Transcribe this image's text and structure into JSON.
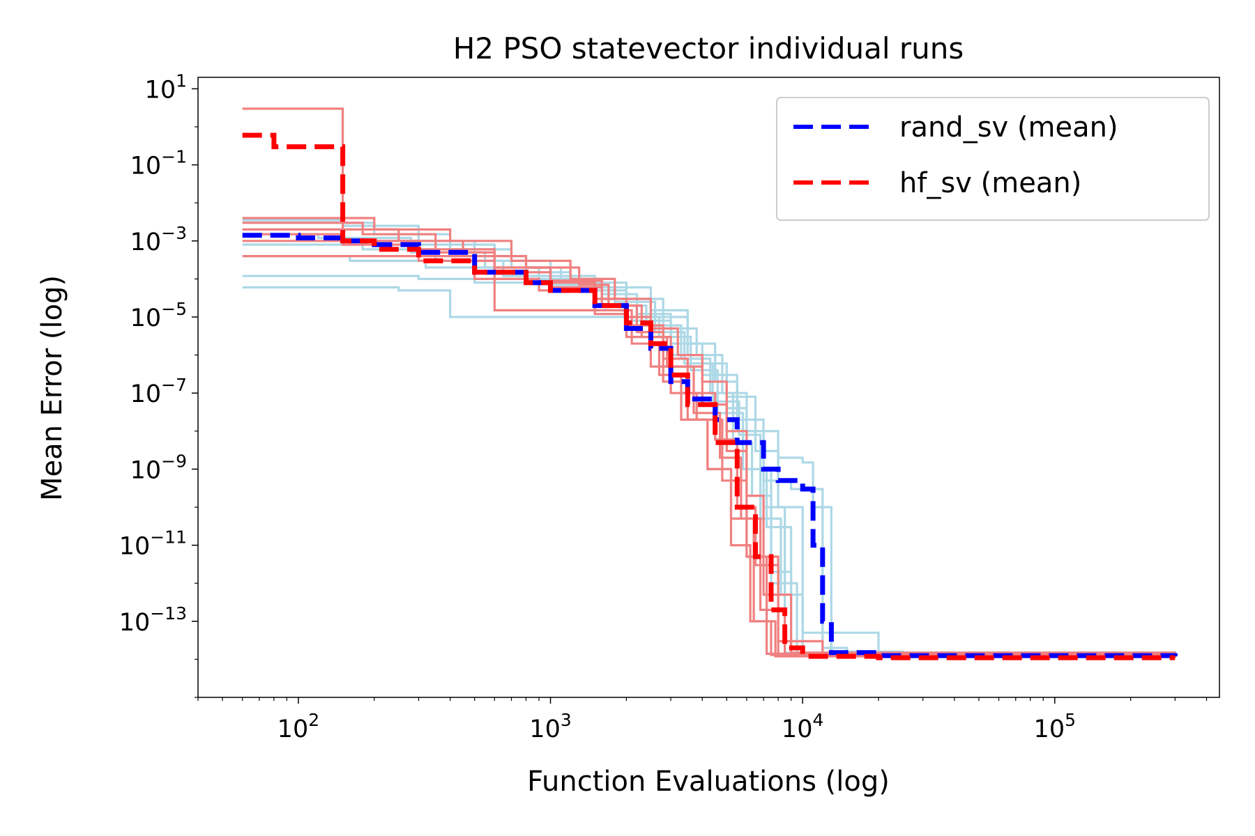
{
  "chart_data": {
    "type": "line",
    "title": "H2 PSO statevector individual runs",
    "xlabel": "Function Evaluations (log)",
    "ylabel": "Mean Error (log)",
    "xscale": "log",
    "yscale": "log",
    "xlim": [
      40,
      450000
    ],
    "ylim": [
      1e-15,
      20
    ],
    "x_ticks": [
      {
        "value": 100,
        "base": "10",
        "exp": "2"
      },
      {
        "value": 1000,
        "base": "10",
        "exp": "3"
      },
      {
        "value": 10000,
        "base": "10",
        "exp": "4"
      },
      {
        "value": 100000,
        "base": "10",
        "exp": "5"
      }
    ],
    "y_ticks": [
      {
        "value": 10,
        "base": "10",
        "exp": "1"
      },
      {
        "value": 0.1,
        "base": "10",
        "exp": "−1"
      },
      {
        "value": 0.001,
        "base": "10",
        "exp": "−3"
      },
      {
        "value": 1e-05,
        "base": "10",
        "exp": "−5"
      },
      {
        "value": 1e-07,
        "base": "10",
        "exp": "−7"
      },
      {
        "value": 1e-09,
        "base": "10",
        "exp": "−9"
      },
      {
        "value": 1e-11,
        "base": "10",
        "exp": "−11"
      },
      {
        "value": 1e-13,
        "base": "10",
        "exp": "−13"
      }
    ],
    "legend": {
      "position": "top-right",
      "entries": [
        {
          "label": "rand_sv (mean)",
          "color": "#0000ff",
          "style": "dashed"
        },
        {
          "label": "hf_sv (mean)",
          "color": "#ff0000",
          "style": "dashed"
        }
      ]
    },
    "series": [
      {
        "name": "rand_sv run 1",
        "group": "rand_sv",
        "color": "#add8e6",
        "x": [
          60,
          150,
          300,
          600,
          1000,
          1500,
          2500,
          3500,
          4500,
          5500,
          7000,
          9000,
          12000,
          15000,
          25000,
          300000
        ],
        "y": [
          0.0035,
          0.0025,
          0.0008,
          0.0003,
          0.00012,
          6e-05,
          1.5e-05,
          2e-06,
          3e-07,
          2e-08,
          5e-10,
          3e-10,
          2e-14,
          1.6e-14,
          1.3e-14,
          1.2e-14
        ]
      },
      {
        "name": "rand_sv run 2",
        "group": "rand_sv",
        "color": "#add8e6",
        "x": [
          60,
          200,
          400,
          700,
          1100,
          1600,
          2200,
          3000,
          4000,
          5000,
          6500,
          8000,
          10000,
          20000,
          300000
        ],
        "y": [
          0.003,
          0.0015,
          0.0006,
          0.0002,
          0.0001,
          4e-05,
          1.2e-05,
          2e-06,
          6e-07,
          8e-08,
          3e-09,
          1e-10,
          5e-14,
          1.5e-14,
          1.2e-14
        ]
      },
      {
        "name": "rand_sv run 3",
        "group": "rand_sv",
        "color": "#add8e6",
        "x": [
          60,
          250,
          500,
          800,
          1200,
          2000,
          2800,
          3800,
          4800,
          6000,
          8000,
          10000,
          11000,
          13000,
          300000
        ],
        "y": [
          0.002,
          0.001,
          0.0004,
          0.00015,
          8e-05,
          3e-05,
          5e-06,
          1e-06,
          1e-07,
          1e-08,
          2e-09,
          1.5e-09,
          1e-10,
          1.5e-14,
          1.2e-14
        ]
      },
      {
        "name": "rand_sv run 4",
        "group": "rand_sv",
        "color": "#add8e6",
        "x": [
          60,
          120,
          280,
          550,
          900,
          1400,
          2000,
          2700,
          3600,
          4600,
          5800,
          7200,
          9000,
          300000
        ],
        "y": [
          0.0015,
          0.0012,
          0.0005,
          0.0002,
          9e-05,
          5e-05,
          1e-05,
          3e-06,
          4e-07,
          3e-08,
          1e-09,
          3e-11,
          1.5e-14,
          1.2e-14
        ]
      },
      {
        "name": "rand_sv run 5",
        "group": "rand_sv",
        "color": "#add8e6",
        "x": [
          60,
          180,
          350,
          650,
          1000,
          1700,
          2400,
          3300,
          4300,
          5300,
          6300,
          7500,
          9500,
          300000
        ],
        "y": [
          0.0008,
          0.0006,
          0.0003,
          0.00012,
          7e-05,
          2e-05,
          6e-06,
          8e-07,
          1e-07,
          5e-09,
          2e-10,
          1e-12,
          1.4e-14,
          1.2e-14
        ]
      },
      {
        "name": "rand_sv run 6",
        "group": "rand_sv",
        "color": "#add8e6",
        "x": [
          60,
          300,
          500,
          1000,
          1500,
          2500,
          3500,
          4500,
          5500,
          7000,
          8500,
          300000
        ],
        "y": [
          0.00012,
          0.0001,
          8e-05,
          6e-05,
          3e-05,
          1e-05,
          1e-06,
          2e-07,
          1e-08,
          1e-10,
          1.5e-14,
          1.2e-14
        ]
      },
      {
        "name": "rand_sv run 7",
        "group": "rand_sv",
        "color": "#add8e6",
        "x": [
          60,
          250,
          400,
          800,
          1500,
          2000,
          3000,
          4000,
          5000,
          6000,
          7500,
          9000,
          300000
        ],
        "y": [
          6e-05,
          5e-05,
          1e-05,
          1e-05,
          1e-05,
          8e-06,
          1e-06,
          3e-07,
          4e-08,
          1e-09,
          2e-12,
          1.4e-14,
          1.2e-14
        ]
      },
      {
        "name": "rand_sv run 8",
        "group": "rand_sv",
        "color": "#add8e6",
        "x": [
          60,
          160,
          320,
          600,
          1200,
          1800,
          2600,
          3400,
          4400,
          5600,
          6800,
          8200,
          10000,
          300000
        ],
        "y": [
          0.0004,
          0.0003,
          0.0002,
          0.0001,
          5e-05,
          2.5e-05,
          4e-06,
          6e-07,
          6e-08,
          8e-09,
          5e-11,
          5e-13,
          1.4e-14,
          1.2e-14
        ]
      },
      {
        "name": "hf_sv run 1",
        "group": "hf_sv",
        "color": "#f08080",
        "x": [
          60,
          120,
          150,
          300,
          600,
          1000,
          1500,
          2000,
          2500,
          3000,
          4000,
          5000,
          6000,
          8000,
          12000,
          300000
        ],
        "y": [
          3,
          3,
          0.001,
          0.0005,
          0.0002,
          8e-05,
          3e-05,
          1e-05,
          3e-06,
          5e-07,
          5e-08,
          3e-09,
          5e-12,
          3e-14,
          1.3e-14,
          1.1e-14
        ]
      },
      {
        "name": "hf_sv run 2",
        "group": "hf_sv",
        "color": "#f08080",
        "x": [
          60,
          200,
          400,
          700,
          1200,
          1800,
          2500,
          3200,
          4000,
          5000,
          6000,
          7000,
          9000,
          300000
        ],
        "y": [
          0.004,
          0.002,
          0.001,
          0.0003,
          0.0001,
          3e-05,
          5e-06,
          1e-06,
          2e-07,
          1e-08,
          2e-10,
          5e-13,
          1.5e-14,
          1.1e-14
        ]
      },
      {
        "name": "hf_sv run 3",
        "group": "hf_sv",
        "color": "#f08080",
        "x": [
          60,
          180,
          350,
          600,
          1000,
          1600,
          2200,
          2800,
          3500,
          4500,
          5500,
          6500,
          8000,
          300000
        ],
        "y": [
          0.003,
          0.0015,
          0.0005,
          0.00015,
          6e-05,
          2e-05,
          4e-06,
          8e-07,
          1e-07,
          6e-09,
          1e-10,
          3e-12,
          1.4e-14,
          1.1e-14
        ]
      },
      {
        "name": "hf_sv run 4",
        "group": "hf_sv",
        "color": "#f08080",
        "x": [
          60,
          250,
          450,
          800,
          1300,
          1700,
          2300,
          2900,
          3700,
          4700,
          5700,
          6800,
          8500,
          300000
        ],
        "y": [
          0.002,
          0.001,
          0.0004,
          0.0002,
          7e-05,
          2e-05,
          3e-06,
          5e-07,
          3e-08,
          2e-09,
          5e-11,
          2e-13,
          1.3e-14,
          1.1e-14
        ]
      },
      {
        "name": "hf_sv run 5",
        "group": "hf_sv",
        "color": "#f08080",
        "x": [
          60,
          150,
          300,
          500,
          900,
          1500,
          2100,
          2700,
          3300,
          4200,
          5200,
          6200,
          7500,
          300000
        ],
        "y": [
          0.0015,
          0.0008,
          0.0003,
          0.0001,
          5e-05,
          1.5e-05,
          2e-06,
          3e-07,
          2e-08,
          1e-09,
          1e-11,
          1e-13,
          1.3e-14,
          1.1e-14
        ]
      },
      {
        "name": "hf_sv run 6",
        "group": "hf_sv",
        "color": "#f08080",
        "x": [
          60,
          500,
          600,
          1000,
          1500,
          2000,
          2800,
          3500,
          4200,
          5200,
          6400,
          7800,
          300000
        ],
        "y": [
          0.0004,
          0.0003,
          1.5e-05,
          1.5e-05,
          1.2e-05,
          6e-06,
          2e-07,
          2e-08,
          1e-09,
          5e-11,
          1e-13,
          1.2e-14,
          1.1e-14
        ]
      },
      {
        "name": "hf_sv run 7",
        "group": "hf_sv",
        "color": "#f08080",
        "x": [
          60,
          300,
          600,
          1000,
          1600,
          2000,
          2500,
          3000,
          3800,
          4800,
          6000,
          7200,
          300000
        ],
        "y": [
          0.001,
          0.0006,
          0.0002,
          9e-05,
          3e-05,
          3e-06,
          5e-07,
          1e-07,
          2e-08,
          5e-10,
          5e-12,
          1.4e-14,
          1.1e-14
        ]
      }
    ],
    "mean_series": [
      {
        "name": "rand_sv (mean)",
        "color": "#0000ff",
        "x": [
          60,
          100,
          150,
          200,
          300,
          500,
          800,
          1000,
          1500,
          2000,
          2500,
          3000,
          3500,
          4500,
          5500,
          7000,
          8000,
          10000,
          11000,
          12000,
          13000,
          20000,
          300000
        ],
        "y": [
          0.0014,
          0.0012,
          0.001,
          0.0008,
          0.0005,
          0.00015,
          8e-05,
          5e-05,
          2e-05,
          5e-06,
          1.5e-06,
          2e-07,
          7e-08,
          2e-08,
          5e-09,
          1e-09,
          5e-10,
          3e-10,
          1e-11,
          1e-13,
          1.5e-14,
          1.25e-14,
          1.2e-14
        ]
      },
      {
        "name": "hf_sv (mean)",
        "color": "#ff0000",
        "x": [
          60,
          80,
          120,
          150,
          200,
          300,
          500,
          800,
          1000,
          1500,
          2000,
          2500,
          3000,
          3500,
          4500,
          5500,
          6500,
          7500,
          8500,
          10000,
          20000,
          300000
        ],
        "y": [
          0.6,
          0.3,
          0.3,
          0.001,
          0.0006,
          0.0003,
          0.00015,
          8e-05,
          5e-05,
          2e-05,
          7e-06,
          2e-06,
          3e-07,
          5e-08,
          5e-09,
          1e-10,
          5e-12,
          2e-13,
          2e-14,
          1.2e-14,
          1.1e-14,
          1.1e-14
        ]
      }
    ]
  }
}
